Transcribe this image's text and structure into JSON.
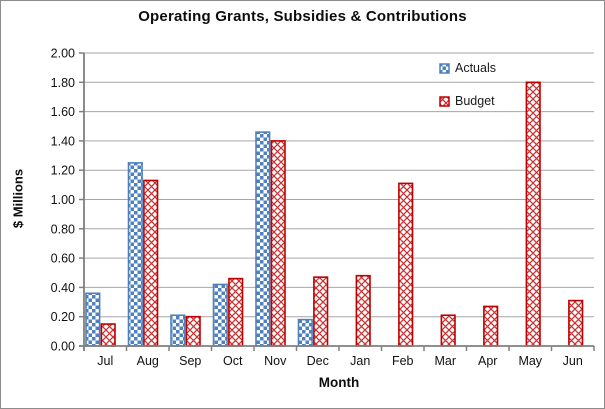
{
  "chart_data": {
    "type": "bar",
    "title": "Operating Grants, Subsidies & Contributions",
    "xlabel": "Month",
    "ylabel": "$ Millions",
    "categories": [
      "Jul",
      "Aug",
      "Sep",
      "Oct",
      "Nov",
      "Dec",
      "Jan",
      "Feb",
      "Mar",
      "Apr",
      "May",
      "Jun"
    ],
    "series": [
      {
        "name": "Actuals",
        "color": "#4F81BD",
        "pattern": "checker",
        "values": [
          0.36,
          1.25,
          0.21,
          0.42,
          1.46,
          0.18,
          null,
          null,
          null,
          null,
          null,
          null
        ]
      },
      {
        "name": "Budget",
        "color": "#C00000",
        "pattern": "weave",
        "values": [
          0.15,
          1.13,
          0.2,
          0.46,
          1.4,
          0.47,
          0.48,
          1.11,
          0.21,
          0.27,
          1.8,
          0.31
        ]
      }
    ],
    "ylim": [
      0.0,
      2.0
    ],
    "ytick_step": 0.2,
    "ytick_decimals": 2,
    "grid": true,
    "legend_position": "top-right-inside"
  },
  "colors": {
    "actuals_blue": "#4F81BD",
    "budget_red": "#C00000",
    "gridline": "#A6A6A6",
    "axis": "#808080",
    "background": "#FFFFFF",
    "border": "#8C8C8C",
    "text": "#000000"
  }
}
